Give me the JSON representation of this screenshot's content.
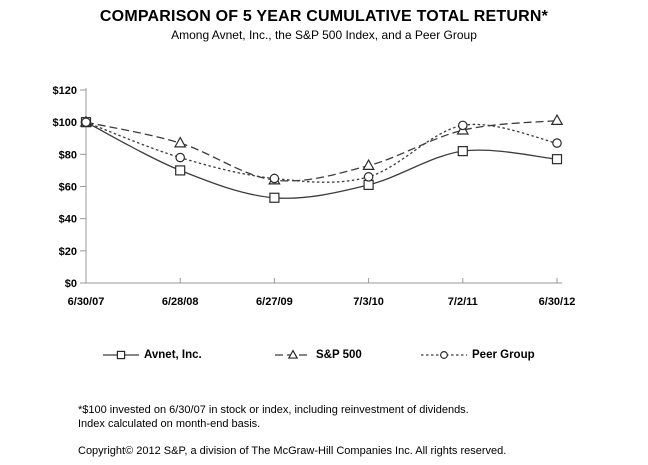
{
  "page": {
    "title": "COMPARISON OF 5 YEAR CUMULATIVE TOTAL RETURN*",
    "subtitle": "Among Avnet, Inc., the S&P 500 Index, and a Peer Group"
  },
  "chart_data": {
    "type": "line",
    "title": "COMPARISON OF 5 YEAR CUMULATIVE TOTAL RETURN*",
    "subtitle": "Among Avnet, Inc., the S&P 500 Index, and a Peer Group",
    "categories": [
      "6/30/07",
      "6/28/08",
      "6/27/09",
      "7/3/10",
      "7/2/11",
      "6/30/12"
    ],
    "series": [
      {
        "name": "Avnet, Inc.",
        "line_style": "solid",
        "marker": "square",
        "values": [
          100,
          70,
          53,
          61,
          82,
          77
        ]
      },
      {
        "name": "S&P 500",
        "line_style": "dashed",
        "marker": "triangle",
        "values": [
          100,
          87,
          64,
          73,
          95,
          101
        ]
      },
      {
        "name": "Peer Group",
        "line_style": "dotted",
        "marker": "circle",
        "values": [
          100,
          78,
          65,
          66,
          98,
          87
        ]
      }
    ],
    "xlabel": "",
    "ylabel": "",
    "ylim": [
      0,
      120
    ],
    "ytick_step": 20,
    "ytick_labels": [
      "$0",
      "$20",
      "$40",
      "$60",
      "$80",
      "$100",
      "$120"
    ],
    "grid": false,
    "legend_position": "bottom"
  },
  "footnotes": {
    "line1": "*$100 invested on 6/30/07 in stock or index, including reinvestment of dividends.",
    "line2": "Index calculated on month-end basis.",
    "copyright": "Copyright© 2012 S&P, a division of The McGraw-Hill Companies Inc. All rights reserved."
  },
  "colors": {
    "background": "#ffffff",
    "text": "#000000",
    "series_line": "#3c3c3c",
    "marker_stroke": "#2b2b2b",
    "axis": "#999999"
  }
}
